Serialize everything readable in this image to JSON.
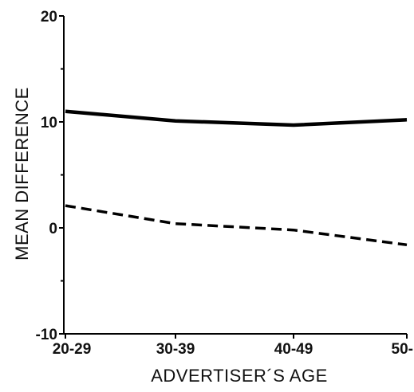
{
  "chart_data": {
    "type": "line",
    "title": "",
    "xlabel": "ADVERTISER´S AGE",
    "ylabel": "MEAN  DIFFERENCE",
    "categories": [
      "20-29",
      "30-39",
      "40-49",
      "50-"
    ],
    "ylim": [
      -10,
      20
    ],
    "yticks": [
      -10,
      0,
      10,
      20
    ],
    "grid": false,
    "legend": "none",
    "series": [
      {
        "values": [
          11.0,
          10.1,
          9.7,
          10.2
        ],
        "style": "solid",
        "color": "#000000"
      },
      {
        "values": [
          2.1,
          0.4,
          -0.2,
          -1.6
        ],
        "style": "dashed",
        "color": "#000000"
      }
    ]
  }
}
